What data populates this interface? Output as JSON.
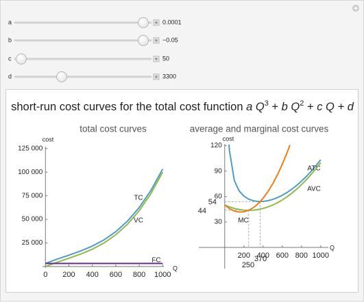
{
  "controls": [
    {
      "label": "a",
      "value": "0.0001"
    },
    {
      "label": "b",
      "value": "−0.05"
    },
    {
      "label": "c",
      "value": "50"
    },
    {
      "label": "d",
      "value": "3300"
    }
  ],
  "title_parts": [
    "short-run cost curves for the total cost function ",
    "a",
    " Q",
    "3",
    " + ",
    "b",
    " Q",
    "2",
    " + ",
    "c",
    " Q + ",
    "d"
  ],
  "chart_data": [
    {
      "type": "line",
      "title": "total cost curves",
      "ylabel": "cost",
      "xlabel": "Q",
      "xlim": [
        -25,
        1010
      ],
      "ylim": [
        -1500,
        127000
      ],
      "xticks": [
        0,
        200,
        400,
        600,
        800,
        1000
      ],
      "yticks": [
        {
          "value": 25000,
          "label": "25 000"
        },
        {
          "value": 50000,
          "label": "50 000"
        },
        {
          "value": 75000,
          "label": "75 000"
        },
        {
          "value": 100000,
          "label": "100 000"
        },
        {
          "value": 125000,
          "label": "125 000"
        }
      ],
      "series": [
        {
          "name": "TC",
          "color": "#4e9cc2",
          "x": [
            0,
            100,
            200,
            300,
            400,
            500,
            600,
            700,
            800,
            900,
            1000
          ],
          "values": [
            3300,
            7900,
            12100,
            16500,
            21700,
            28300,
            36900,
            48100,
            62500,
            80700,
            103300
          ]
        },
        {
          "name": "VC",
          "color": "#8fb84a",
          "x": [
            0,
            100,
            200,
            300,
            400,
            500,
            600,
            700,
            800,
            900,
            1000
          ],
          "values": [
            0,
            4600,
            8800,
            13200,
            18400,
            25000,
            33600,
            44800,
            59200,
            77400,
            100000
          ]
        },
        {
          "name": "FC",
          "color": "#6a2a8e",
          "x": [
            0,
            1000
          ],
          "values": [
            3300,
            3300
          ]
        }
      ]
    },
    {
      "type": "line",
      "title": "average and marginal cost curves",
      "ylabel": "cost",
      "xlabel": "Q",
      "xlim": [
        -270,
        1080
      ],
      "ylim": [
        -25,
        122
      ],
      "xticks": [
        200,
        400,
        600,
        800,
        1000
      ],
      "yticks": [
        30,
        60,
        90,
        120
      ],
      "series": [
        {
          "name": "ATC",
          "color": "#4e9cc2",
          "x": [
            45,
            50,
            100,
            150,
            200,
            250,
            300,
            350,
            400,
            450,
            500,
            550,
            600,
            650,
            700,
            750,
            800,
            850,
            900,
            950,
            1000
          ],
          "values": [
            121.3,
            113.75,
            79,
            66.75,
            60.5,
            56.95,
            55,
            54.18,
            54.25,
            55.08,
            56.6,
            58.75,
            61.5,
            64.83,
            68.71,
            73.15,
            78.13,
            83.63,
            89.67,
            96.22,
            103.3
          ]
        },
        {
          "name": "AVC",
          "color": "#8fb84a",
          "x": [
            0,
            50,
            100,
            150,
            200,
            250,
            300,
            350,
            400,
            450,
            500,
            550,
            600,
            650,
            700,
            750,
            800,
            850,
            900,
            950,
            1000
          ],
          "values": [
            50,
            47.75,
            46,
            44.75,
            44,
            43.75,
            44,
            44.75,
            46,
            47.75,
            50,
            52.75,
            56,
            59.75,
            64,
            68.75,
            74,
            79.75,
            86,
            92.75,
            100
          ]
        },
        {
          "name": "MC",
          "color": "#f07d1a",
          "x": [
            0,
            50,
            100,
            150,
            200,
            250,
            300,
            350,
            400,
            450,
            500,
            550,
            600,
            650,
            680
          ],
          "values": [
            50,
            45.75,
            43,
            41.75,
            42,
            43.75,
            47,
            51.75,
            58,
            65.75,
            75,
            85.75,
            98,
            111.75,
            120.72
          ]
        }
      ],
      "annotations": [
        {
          "x": 250,
          "y": 44
        },
        {
          "x": 370,
          "y": 54
        }
      ]
    }
  ]
}
